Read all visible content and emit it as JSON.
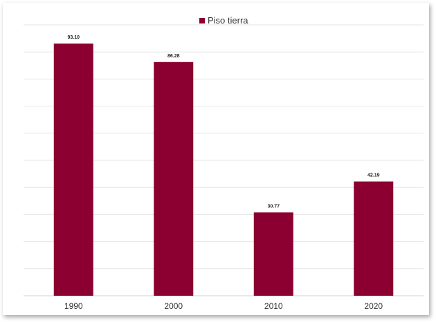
{
  "chart_data": {
    "type": "bar",
    "categories": [
      "1990",
      "2000",
      "2010",
      "2020"
    ],
    "series": [
      {
        "name": "Piso tierra",
        "values": [
          93.1,
          86.28,
          30.77,
          42.19
        ],
        "labels": [
          "93.10",
          "86.28",
          "30.77",
          "42.19"
        ]
      }
    ],
    "ylim": [
      0,
      100
    ],
    "grid": true,
    "legend": "top-center",
    "color": "#8b0030"
  }
}
